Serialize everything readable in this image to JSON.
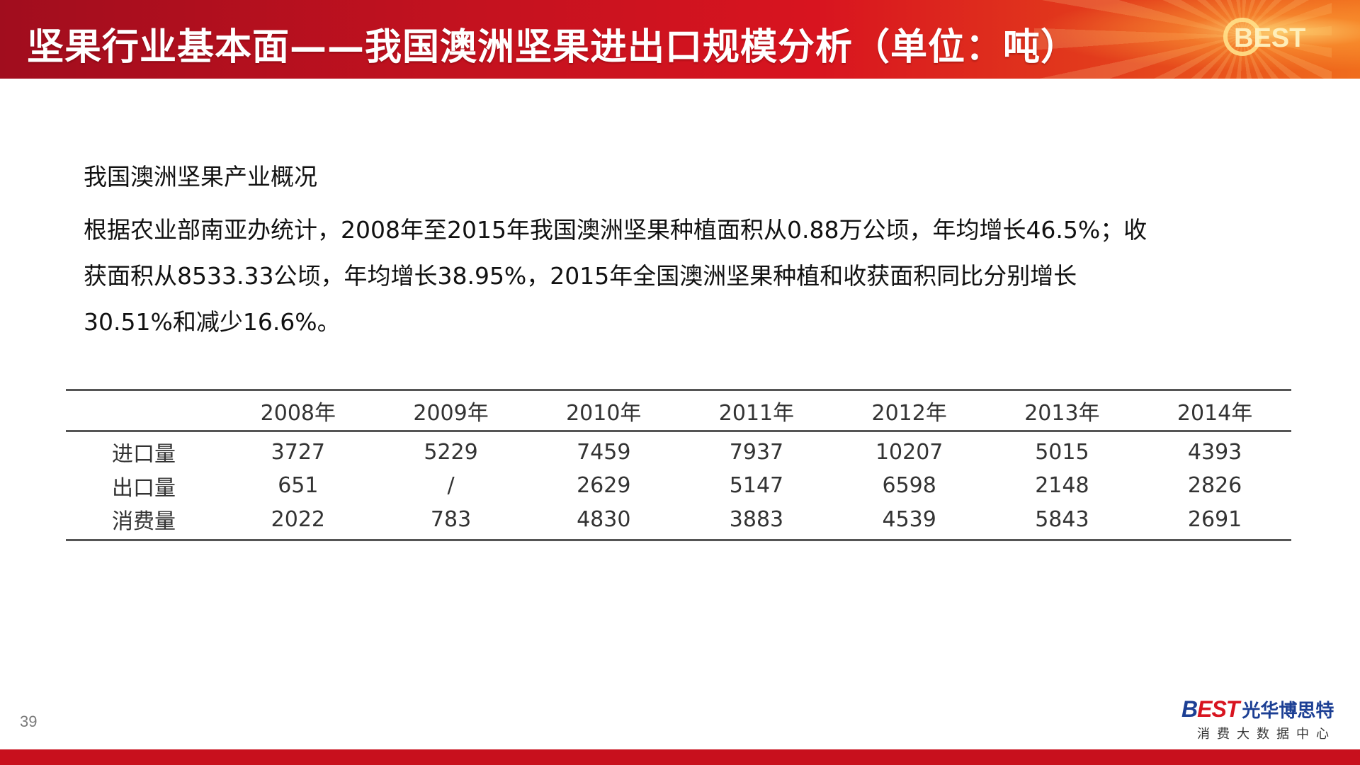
{
  "header": {
    "title": "坚果行业基本面——我国澳洲坚果进出口规模分析（单位：吨）",
    "logo_text": "BEST"
  },
  "intro": {
    "heading": "我国澳洲坚果产业概况",
    "body_lines": [
      "根据农业部南亚办统计，2008年至2015年我国澳洲坚果种植面积从0.88万公顷，年均增长46.5%；收",
      "获面积从8533.33公顷，年均增长38.95%，2015年全国澳洲坚果种植和收获面积同比分别增长",
      "30.51%和减少16.6%。"
    ]
  },
  "table": {
    "corner": "",
    "years": [
      "2008年",
      "2009年",
      "2010年",
      "2011年",
      "2012年",
      "2013年",
      "2014年"
    ],
    "rows": [
      {
        "label": "进口量",
        "values": [
          "3727",
          "5229",
          "7459",
          "7937",
          "10207",
          "5015",
          "4393"
        ]
      },
      {
        "label": "出口量",
        "values": [
          "651",
          "/",
          "2629",
          "5147",
          "6598",
          "2148",
          "2826"
        ]
      },
      {
        "label": "消费量",
        "values": [
          "2022",
          "783",
          "4830",
          "3883",
          "4539",
          "5843",
          "2691"
        ]
      }
    ]
  },
  "footer": {
    "page_number": "39",
    "brand_mark_b": "B",
    "brand_mark_rest": "EST",
    "brand_cn": "光华博思特",
    "brand_sub": "消费大数据中心"
  },
  "colors": {
    "header_red": "#c4121f",
    "brand_blue": "#1c3f94",
    "bottom_bar": "#c8101d"
  }
}
